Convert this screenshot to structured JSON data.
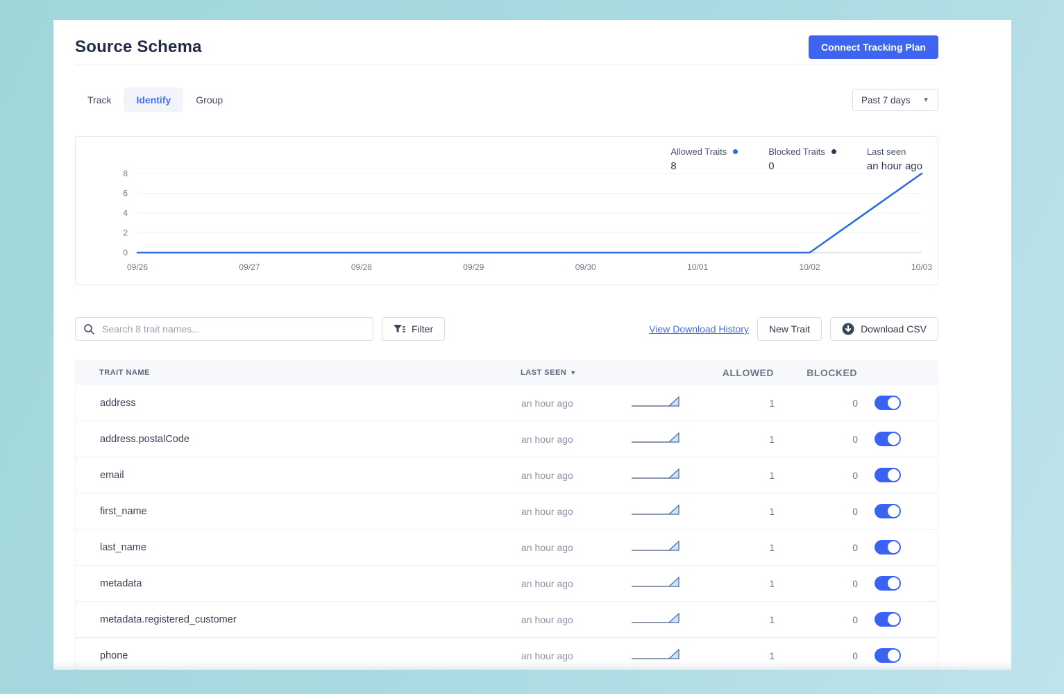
{
  "page": {
    "title": "Source Schema"
  },
  "header": {
    "connect_button_label": "Connect Tracking Plan"
  },
  "tabs": {
    "items": [
      {
        "label": "Track",
        "active": false
      },
      {
        "label": "Identify",
        "active": true
      },
      {
        "label": "Group",
        "active": false
      }
    ]
  },
  "date_range": {
    "selected": "Past 7 days"
  },
  "chart_data": {
    "type": "line",
    "x": [
      "09/26",
      "09/27",
      "09/28",
      "09/29",
      "09/30",
      "10/01",
      "10/02",
      "10/03"
    ],
    "series": [
      {
        "name": "Allowed Traits",
        "color": "#2d6ce0",
        "values": [
          0,
          0,
          0,
          0,
          0,
          0,
          0,
          8
        ]
      },
      {
        "name": "Blocked Traits",
        "color": "#2d3a54",
        "values": [
          0,
          0,
          0,
          0,
          0,
          0,
          0,
          0
        ]
      }
    ],
    "yticks": [
      0,
      2,
      4,
      6,
      8
    ],
    "ylim": [
      0,
      8
    ],
    "grid": true,
    "legend_position": "top-right",
    "legend": {
      "allowed_label": "Allowed Traits",
      "allowed_value": "8",
      "blocked_label": "Blocked Traits",
      "blocked_value": "0",
      "last_seen_label": "Last seen",
      "last_seen_value": "an hour ago"
    }
  },
  "toolbar": {
    "search_placeholder": "Search 8 trait names...",
    "filter_label": "Filter",
    "view_download_history_label": "View Download History",
    "new_trait_label": "New Trait",
    "download_csv_label": "Download CSV"
  },
  "table": {
    "columns": {
      "trait": "TRAIT NAME",
      "last_seen": "LAST SEEN",
      "allowed": "ALLOWED",
      "blocked": "BLOCKED"
    },
    "rows": [
      {
        "name": "address",
        "last_seen": "an hour ago",
        "allowed": 1,
        "blocked": 0,
        "enabled": true
      },
      {
        "name": "address.postalCode",
        "last_seen": "an hour ago",
        "allowed": 1,
        "blocked": 0,
        "enabled": true
      },
      {
        "name": "email",
        "last_seen": "an hour ago",
        "allowed": 1,
        "blocked": 0,
        "enabled": true
      },
      {
        "name": "first_name",
        "last_seen": "an hour ago",
        "allowed": 1,
        "blocked": 0,
        "enabled": true
      },
      {
        "name": "last_name",
        "last_seen": "an hour ago",
        "allowed": 1,
        "blocked": 0,
        "enabled": true
      },
      {
        "name": "metadata",
        "last_seen": "an hour ago",
        "allowed": 1,
        "blocked": 0,
        "enabled": true
      },
      {
        "name": "metadata.registered_customer",
        "last_seen": "an hour ago",
        "allowed": 1,
        "blocked": 0,
        "enabled": true
      },
      {
        "name": "phone",
        "last_seen": "an hour ago",
        "allowed": 1,
        "blocked": 0,
        "enabled": true
      }
    ]
  },
  "colors": {
    "accent_blue": "#3d65f2",
    "toggle_on": "#3b63f3",
    "chart_line": "#2d6ce0",
    "background_teal": "#a5d8de"
  }
}
